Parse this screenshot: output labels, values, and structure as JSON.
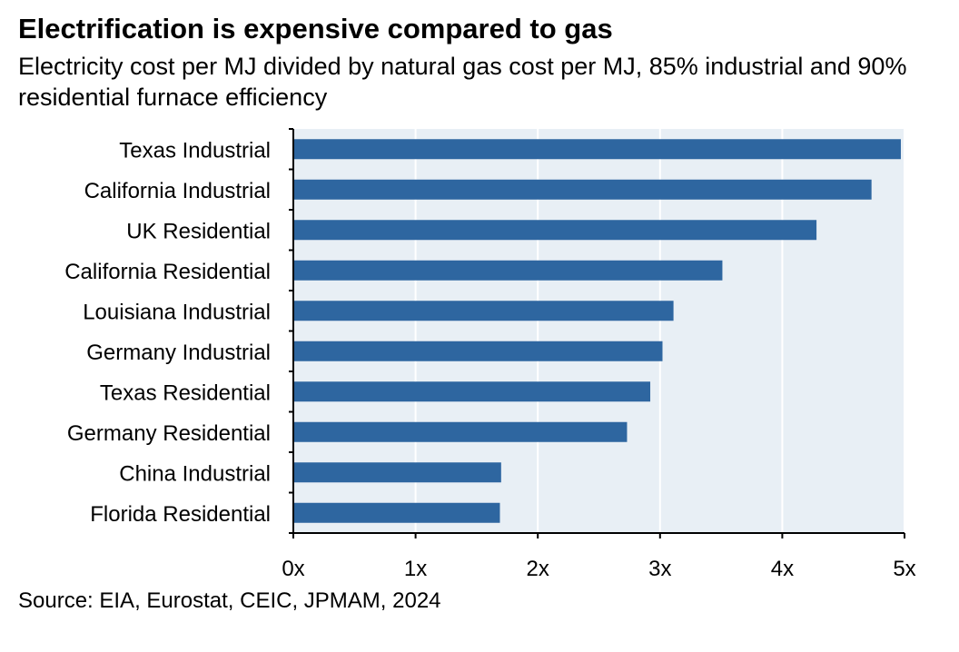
{
  "chart_data": {
    "type": "bar",
    "orientation": "horizontal",
    "title": "Electrification is expensive compared to gas",
    "subtitle": "Electricity cost per MJ divided by natural gas cost per MJ, 85% industrial and 90% residential furnace efficiency",
    "source": "Source: EIA, Eurostat, CEIC, JPMAM, 2024",
    "categories": [
      "Texas Industrial",
      "California Industrial",
      "UK Residential",
      "California Residential",
      "Louisiana Industrial",
      "Germany Industrial",
      "Texas Residential",
      "Germany Residential",
      "China Industrial",
      "Florida Residential"
    ],
    "values": [
      4.97,
      4.73,
      4.28,
      3.51,
      3.11,
      3.02,
      2.92,
      2.73,
      1.7,
      1.69
    ],
    "xlim": [
      0,
      5
    ],
    "x_ticks": [
      0,
      1,
      2,
      3,
      4,
      5
    ],
    "x_tick_labels": [
      "0x",
      "1x",
      "2x",
      "3x",
      "4x",
      "5x"
    ],
    "grid": true,
    "colors": {
      "bar": "#2e66a0",
      "plot_background": "#e8eff5",
      "gridline": "#ffffff",
      "axis": "#000000"
    }
  }
}
